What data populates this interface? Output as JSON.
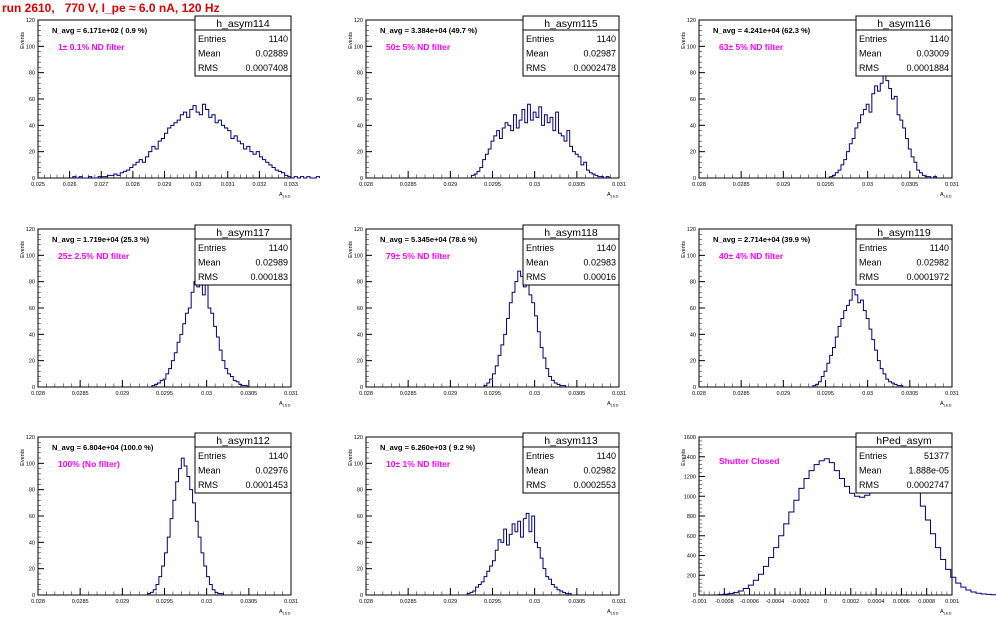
{
  "page": {
    "title": "run 2610,   770 V, I_pe ≈ 6.0 nA, 120 Hz"
  },
  "colors": {
    "histogram": "#000080",
    "annotation": "#ff00ff",
    "title": "#e00000"
  },
  "axis_labels": {
    "x": "A",
    "x_sub": "LED",
    "y": "Events"
  },
  "stats_labels": [
    "Entries",
    "Mean",
    "RMS"
  ],
  "chart_data": [
    {
      "type": "bar",
      "name": "h_asym114",
      "navg": "N_avg = 6.171e+02 ( 0.9 %)",
      "filter": "1± 0.1% ND filter",
      "stats": {
        "entries": "1140",
        "mean": "0.02889",
        "rms": "0.0007408"
      },
      "xlim": [
        0.025,
        0.033
      ],
      "xticks": [
        "0.025",
        "0.026",
        "0.027",
        "0.028",
        "0.029",
        "0.03",
        "0.031",
        "0.032",
        "0.033"
      ],
      "ylim": [
        0,
        120
      ],
      "yticks": [
        "0",
        "20",
        "40",
        "60",
        "80",
        "100",
        "120"
      ],
      "x_start": 0.0261,
      "bin_width": 0.0001,
      "values": [
        1,
        0,
        1,
        0,
        0,
        1,
        0,
        0,
        1,
        1,
        1,
        2,
        2,
        3,
        2,
        4,
        5,
        6,
        8,
        10,
        12,
        14,
        12,
        16,
        20,
        24,
        22,
        28,
        30,
        34,
        38,
        40,
        42,
        44,
        48,
        50,
        46,
        52,
        55,
        50,
        48,
        56,
        52,
        46,
        48,
        42,
        44,
        40,
        38,
        36,
        30,
        32,
        28,
        26,
        22,
        24,
        20,
        18,
        20,
        16,
        14,
        12,
        10,
        8,
        6,
        5,
        4,
        2,
        1,
        0,
        1,
        0,
        1,
        0,
        1,
        0,
        0,
        1
      ]
    },
    {
      "type": "bar",
      "name": "h_asym115",
      "navg": "N_avg = 3.384e+04 (49.7 %)",
      "filter": "50± 5% ND filter",
      "stats": {
        "entries": "1140",
        "mean": "0.02987",
        "rms": "0.0002478"
      },
      "xlim": [
        0.028,
        0.031
      ],
      "xticks": [
        "0.028",
        "0.0285",
        "0.029",
        "0.0295",
        "0.03",
        "0.0305",
        "0.031"
      ],
      "ylim": [
        0,
        120
      ],
      "yticks": [
        "0",
        "20",
        "40",
        "60",
        "80",
        "100",
        "120"
      ],
      "x_start": 0.02925,
      "bin_width": 3.33e-05,
      "values": [
        2,
        3,
        5,
        8,
        14,
        18,
        22,
        28,
        32,
        36,
        30,
        38,
        42,
        40,
        36,
        48,
        38,
        44,
        52,
        42,
        56,
        44,
        50,
        46,
        54,
        40,
        48,
        42,
        46,
        36,
        50,
        34,
        32,
        28,
        36,
        24,
        20,
        18,
        16,
        10,
        12,
        6,
        4,
        3,
        2,
        1,
        1,
        0,
        1
      ]
    },
    {
      "type": "bar",
      "name": "h_asym116",
      "navg": "N_avg = 4.241e+04 (62.3 %)",
      "filter": "63± 5% ND filter",
      "stats": {
        "entries": "1140",
        "mean": "0.03009",
        "rms": "0.0001884"
      },
      "xlim": [
        0.028,
        0.031
      ],
      "xticks": [
        "0.028",
        "0.0285",
        "0.029",
        "0.0295",
        "0.03",
        "0.0305",
        "0.031"
      ],
      "ylim": [
        0,
        120
      ],
      "yticks": [
        "0",
        "20",
        "40",
        "60",
        "80",
        "100",
        "120"
      ],
      "x_start": 0.02955,
      "bin_width": 3.33e-05,
      "values": [
        1,
        2,
        4,
        6,
        10,
        14,
        20,
        26,
        30,
        38,
        42,
        48,
        52,
        56,
        50,
        64,
        70,
        66,
        72,
        80,
        74,
        68,
        60,
        62,
        48,
        44,
        38,
        30,
        22,
        16,
        12,
        6,
        4,
        2,
        1,
        1,
        0,
        1
      ]
    },
    {
      "type": "bar",
      "name": "h_asym117",
      "navg": "N_avg = 1.719e+04 (25.3 %)",
      "filter": "25± 2.5% ND filter",
      "stats": {
        "entries": "1140",
        "mean": "0.02989",
        "rms": "0.000183"
      },
      "xlim": [
        0.028,
        0.031
      ],
      "xticks": [
        "0.028",
        "0.0285",
        "0.029",
        "0.0295",
        "0.03",
        "0.0305",
        "0.031"
      ],
      "ylim": [
        0,
        120
      ],
      "yticks": [
        "0",
        "20",
        "40",
        "60",
        "80",
        "100",
        "120"
      ],
      "x_start": 0.02935,
      "bin_width": 3.33e-05,
      "values": [
        1,
        2,
        3,
        5,
        6,
        10,
        14,
        20,
        26,
        34,
        40,
        48,
        56,
        60,
        72,
        80,
        76,
        86,
        70,
        78,
        60,
        56,
        46,
        38,
        28,
        20,
        14,
        10,
        8,
        5,
        4,
        2,
        1,
        1
      ]
    },
    {
      "type": "bar",
      "name": "h_asym118",
      "navg": "N_avg = 5.345e+04 (78.6 %)",
      "filter": "79± 5% ND filter",
      "stats": {
        "entries": "1140",
        "mean": "0.02983",
        "rms": "0.00016"
      },
      "xlim": [
        0.028,
        0.031
      ],
      "xticks": [
        "0.028",
        "0.0285",
        "0.029",
        "0.0295",
        "0.03",
        "0.0305",
        "0.031"
      ],
      "ylim": [
        0,
        120
      ],
      "yticks": [
        "0",
        "20",
        "40",
        "60",
        "80",
        "100",
        "120"
      ],
      "x_start": 0.0294,
      "bin_width": 3.33e-05,
      "values": [
        1,
        3,
        6,
        10,
        16,
        24,
        32,
        40,
        52,
        64,
        72,
        80,
        88,
        84,
        76,
        82,
        70,
        64,
        54,
        42,
        30,
        22,
        14,
        8,
        5,
        3,
        2,
        1,
        1
      ]
    },
    {
      "type": "bar",
      "name": "h_asym119",
      "navg": "N_avg = 2.714e+04 (39.9 %)",
      "filter": "40± 4% ND filter",
      "stats": {
        "entries": "1140",
        "mean": "0.02982",
        "rms": "0.0001972"
      },
      "xlim": [
        0.028,
        0.031
      ],
      "xticks": [
        "0.028",
        "0.0285",
        "0.029",
        "0.0295",
        "0.03",
        "0.0305",
        "0.031"
      ],
      "ylim": [
        0,
        120
      ],
      "yticks": [
        "0",
        "20",
        "40",
        "60",
        "80",
        "100",
        "120"
      ],
      "x_start": 0.02935,
      "bin_width": 3.33e-05,
      "values": [
        1,
        2,
        4,
        8,
        12,
        18,
        24,
        30,
        38,
        46,
        52,
        58,
        62,
        66,
        74,
        70,
        64,
        66,
        58,
        52,
        44,
        36,
        28,
        20,
        14,
        10,
        6,
        4,
        3,
        2,
        1,
        1
      ]
    },
    {
      "type": "bar",
      "name": "h_asym112",
      "navg": "N_avg = 6.804e+04 (100.0 %)",
      "filter": "100% (No filter)",
      "stats": {
        "entries": "1140",
        "mean": "0.02976",
        "rms": "0.0001453"
      },
      "xlim": [
        0.028,
        0.031
      ],
      "xticks": [
        "0.028",
        "0.0285",
        "0.029",
        "0.0295",
        "0.03",
        "0.0305",
        "0.031"
      ],
      "ylim": [
        0,
        120
      ],
      "yticks": [
        "0",
        "20",
        "40",
        "60",
        "80",
        "100",
        "120"
      ],
      "x_start": 0.0293,
      "bin_width": 3.33e-05,
      "values": [
        1,
        2,
        4,
        8,
        14,
        22,
        32,
        44,
        58,
        72,
        86,
        96,
        104,
        98,
        90,
        80,
        70,
        56,
        44,
        32,
        22,
        14,
        8,
        4,
        2,
        1,
        1
      ]
    },
    {
      "type": "bar",
      "name": "h_asym113",
      "navg": "N_avg = 6.260e+03 ( 9.2 %)",
      "filter": "10± 1% ND filter",
      "stats": {
        "entries": "1140",
        "mean": "0.02982",
        "rms": "0.0002553"
      },
      "xlim": [
        0.028,
        0.031
      ],
      "xticks": [
        "0.028",
        "0.0285",
        "0.029",
        "0.0295",
        "0.03",
        "0.0305",
        "0.031"
      ],
      "ylim": [
        0,
        120
      ],
      "yticks": [
        "0",
        "20",
        "40",
        "60",
        "80",
        "100",
        "120"
      ],
      "x_start": 0.0292,
      "bin_width": 3.33e-05,
      "values": [
        1,
        2,
        3,
        6,
        8,
        10,
        14,
        18,
        22,
        26,
        34,
        42,
        40,
        50,
        38,
        46,
        54,
        48,
        56,
        44,
        58,
        62,
        48,
        60,
        40,
        36,
        28,
        20,
        14,
        12,
        8,
        6,
        4,
        3,
        2,
        1,
        1
      ]
    },
    {
      "type": "bar",
      "name": "hPed_asym",
      "navg": "",
      "filter": "Shutter Closed",
      "stats": {
        "entries": "51377",
        "mean": "1.888e-05",
        "rms": "0.0002747"
      },
      "xlim": [
        -0.001,
        0.001
      ],
      "xticks": [
        "-0.001",
        "-0.0008",
        "-0.0006",
        "-0.0004",
        "-0.0002",
        "0",
        "0.0002",
        "0.0004",
        "0.0006",
        "0.0008",
        "0.001"
      ],
      "ylim": [
        0,
        1600
      ],
      "yticks": [
        "0",
        "200",
        "400",
        "600",
        "800",
        "1000",
        "1200",
        "1400",
        "1600"
      ],
      "x_start": -0.00085,
      "bin_width": 4e-05,
      "values": [
        4,
        8,
        14,
        24,
        40,
        66,
        100,
        150,
        210,
        290,
        380,
        480,
        600,
        720,
        840,
        960,
        1080,
        1180,
        1260,
        1320,
        1360,
        1380,
        1340,
        1260,
        1180,
        1100,
        1030,
        1000,
        990,
        1010,
        1060,
        1130,
        1210,
        1280,
        1320,
        1330,
        1300,
        1240,
        1160,
        1040,
        900,
        760,
        620,
        480,
        360,
        260,
        180,
        120,
        80,
        50,
        30,
        18,
        10,
        6,
        3,
        1
      ]
    }
  ]
}
